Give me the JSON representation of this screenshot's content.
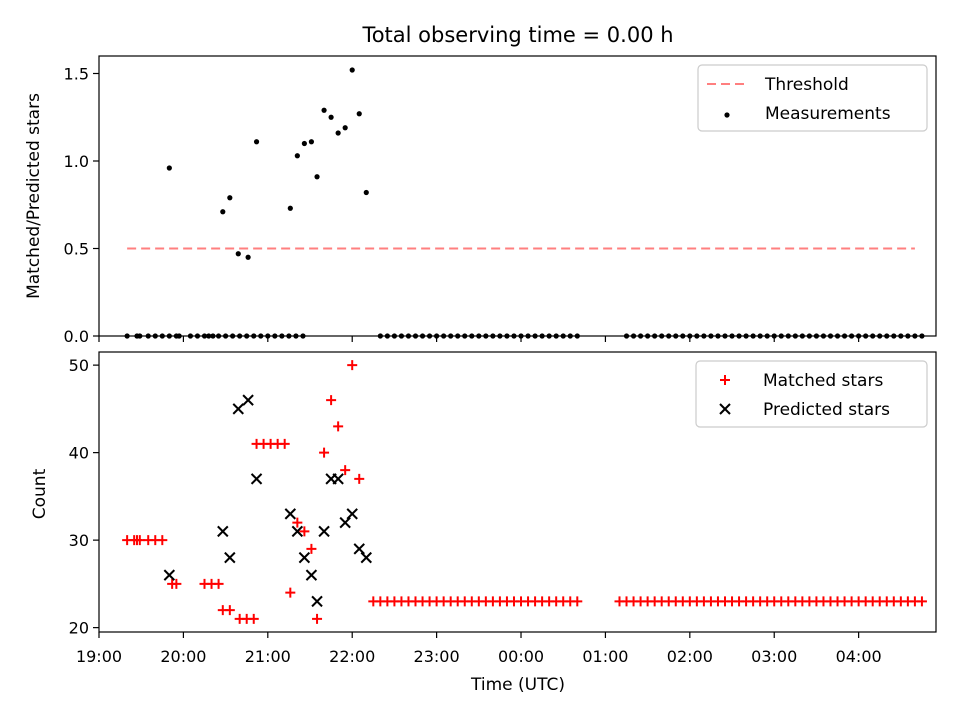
{
  "chart_data": [
    {
      "type": "scatter",
      "title": "Total observing time = 0.00 h",
      "xlabel": "",
      "ylabel": "Matched/Predicted stars",
      "xlim": [
        "19:00",
        "04:55"
      ],
      "ylim": [
        0,
        1.6
      ],
      "yticks": [
        0.0,
        0.5,
        1.0,
        1.5
      ],
      "ytick_labels": [
        "0.0",
        "0.5",
        "1.0",
        "1.5"
      ],
      "grid": false,
      "legend_position": "top-right",
      "legend": [
        "Threshold",
        "Measurements"
      ],
      "series": [
        {
          "name": "Threshold",
          "kind": "dashed-line",
          "color": "#ff7f7f",
          "x": [
            "19:20",
            "04:40"
          ],
          "y": [
            0.5,
            0.5
          ]
        },
        {
          "name": "Measurements",
          "kind": "scatter",
          "color": "#000000",
          "points": [
            [
              "19:20",
              0
            ],
            [
              "19:27",
              0
            ],
            [
              "19:29",
              0
            ],
            [
              "19:35",
              0
            ],
            [
              "19:40",
              0
            ],
            [
              "19:45",
              0
            ],
            [
              "19:50",
              0
            ],
            [
              "19:55",
              0
            ],
            [
              "19:57",
              0
            ],
            [
              "20:05",
              0
            ],
            [
              "20:10",
              0
            ],
            [
              "20:15",
              0
            ],
            [
              "20:18",
              0
            ],
            [
              "20:21",
              0
            ],
            [
              "20:25",
              0
            ],
            [
              "20:30",
              0
            ],
            [
              "20:35",
              0
            ],
            [
              "20:40",
              0
            ],
            [
              "20:45",
              0
            ],
            [
              "20:50",
              0
            ],
            [
              "20:55",
              0
            ],
            [
              "21:00",
              0
            ],
            [
              "21:05",
              0
            ],
            [
              "21:10",
              0
            ],
            [
              "21:15",
              0
            ],
            [
              "21:20",
              0
            ],
            [
              "21:25",
              0
            ],
            [
              "19:50",
              0.96
            ],
            [
              "20:28",
              0.71
            ],
            [
              "20:33",
              0.79
            ],
            [
              "20:39",
              0.47
            ],
            [
              "20:46",
              0.45
            ],
            [
              "20:52",
              1.11
            ],
            [
              "21:16",
              0.73
            ],
            [
              "21:21",
              1.03
            ],
            [
              "21:26",
              1.1
            ],
            [
              "21:31",
              1.11
            ],
            [
              "21:35",
              0.91
            ],
            [
              "21:40",
              1.29
            ],
            [
              "21:45",
              1.25
            ],
            [
              "21:50",
              1.16
            ],
            [
              "21:55",
              1.19
            ],
            [
              "22:00",
              1.52
            ],
            [
              "22:05",
              1.27
            ],
            [
              "22:10",
              0.82
            ],
            [
              "22:20",
              0
            ],
            [
              "22:25",
              0
            ],
            [
              "22:30",
              0
            ],
            [
              "22:35",
              0
            ],
            [
              "22:40",
              0
            ],
            [
              "22:45",
              0
            ],
            [
              "22:50",
              0
            ],
            [
              "22:55",
              0
            ],
            [
              "23:00",
              0
            ],
            [
              "23:05",
              0
            ],
            [
              "23:10",
              0
            ],
            [
              "23:15",
              0
            ],
            [
              "23:20",
              0
            ],
            [
              "23:25",
              0
            ],
            [
              "23:30",
              0
            ],
            [
              "23:35",
              0
            ],
            [
              "23:40",
              0
            ],
            [
              "23:45",
              0
            ],
            [
              "23:50",
              0
            ],
            [
              "23:55",
              0
            ],
            [
              "00:00",
              0
            ],
            [
              "00:05",
              0
            ],
            [
              "00:10",
              0
            ],
            [
              "00:15",
              0
            ],
            [
              "00:20",
              0
            ],
            [
              "00:25",
              0
            ],
            [
              "00:30",
              0
            ],
            [
              "00:35",
              0
            ],
            [
              "00:40",
              0
            ],
            [
              "01:15",
              0
            ],
            [
              "01:20",
              0
            ],
            [
              "01:25",
              0
            ],
            [
              "01:30",
              0
            ],
            [
              "01:35",
              0
            ],
            [
              "01:40",
              0
            ],
            [
              "01:45",
              0
            ],
            [
              "01:50",
              0
            ],
            [
              "01:55",
              0
            ],
            [
              "02:00",
              0
            ],
            [
              "02:05",
              0
            ],
            [
              "02:10",
              0
            ],
            [
              "02:15",
              0
            ],
            [
              "02:20",
              0
            ],
            [
              "02:25",
              0
            ],
            [
              "02:30",
              0
            ],
            [
              "02:35",
              0
            ],
            [
              "02:40",
              0
            ],
            [
              "02:45",
              0
            ],
            [
              "02:50",
              0
            ],
            [
              "02:55",
              0
            ],
            [
              "03:00",
              0
            ],
            [
              "03:05",
              0
            ],
            [
              "03:10",
              0
            ],
            [
              "03:15",
              0
            ],
            [
              "03:20",
              0
            ],
            [
              "03:25",
              0
            ],
            [
              "03:30",
              0
            ],
            [
              "03:35",
              0
            ],
            [
              "03:40",
              0
            ],
            [
              "03:45",
              0
            ],
            [
              "03:50",
              0
            ],
            [
              "03:55",
              0
            ],
            [
              "04:00",
              0
            ],
            [
              "04:05",
              0
            ],
            [
              "04:10",
              0
            ],
            [
              "04:15",
              0
            ],
            [
              "04:20",
              0
            ],
            [
              "04:25",
              0
            ],
            [
              "04:30",
              0
            ],
            [
              "04:35",
              0
            ],
            [
              "04:40",
              0
            ],
            [
              "04:45",
              0
            ]
          ]
        }
      ]
    },
    {
      "type": "scatter",
      "title": "",
      "xlabel": "Time (UTC)",
      "ylabel": "Count",
      "xlim": [
        "19:00",
        "04:55"
      ],
      "ylim": [
        19.5,
        51.5
      ],
      "yticks": [
        20,
        30,
        40,
        50
      ],
      "ytick_labels": [
        "20",
        "30",
        "40",
        "50"
      ],
      "xticks": [
        "19:00",
        "20:00",
        "21:00",
        "22:00",
        "23:00",
        "00:00",
        "01:00",
        "02:00",
        "03:00",
        "04:00"
      ],
      "grid": false,
      "legend_position": "top-right",
      "legend": [
        "Matched stars",
        "Predicted stars"
      ],
      "series": [
        {
          "name": "Matched stars",
          "marker": "plus",
          "color": "#ff0000",
          "points": [
            [
              "19:20",
              30
            ],
            [
              "19:25",
              30
            ],
            [
              "19:27",
              30
            ],
            [
              "19:29",
              30
            ],
            [
              "19:35",
              30
            ],
            [
              "19:40",
              30
            ],
            [
              "19:45",
              30
            ],
            [
              "19:52",
              25
            ],
            [
              "19:55",
              25
            ],
            [
              "20:15",
              25
            ],
            [
              "20:20",
              25
            ],
            [
              "20:25",
              25
            ],
            [
              "20:28",
              22
            ],
            [
              "20:33",
              22
            ],
            [
              "20:40",
              21
            ],
            [
              "20:45",
              21
            ],
            [
              "20:50",
              21
            ],
            [
              "20:52",
              41
            ],
            [
              "20:57",
              41
            ],
            [
              "21:02",
              41
            ],
            [
              "21:07",
              41
            ],
            [
              "21:12",
              41
            ],
            [
              "21:16",
              24
            ],
            [
              "21:21",
              32
            ],
            [
              "21:26",
              31
            ],
            [
              "21:31",
              29
            ],
            [
              "21:35",
              21
            ],
            [
              "21:40",
              40
            ],
            [
              "21:45",
              46
            ],
            [
              "21:50",
              43
            ],
            [
              "21:55",
              38
            ],
            [
              "22:00",
              50
            ],
            [
              "22:05",
              37
            ],
            [
              "22:15",
              23
            ],
            [
              "22:20",
              23
            ],
            [
              "22:25",
              23
            ],
            [
              "22:30",
              23
            ],
            [
              "22:35",
              23
            ],
            [
              "22:40",
              23
            ],
            [
              "22:45",
              23
            ],
            [
              "22:50",
              23
            ],
            [
              "22:55",
              23
            ],
            [
              "23:00",
              23
            ],
            [
              "23:05",
              23
            ],
            [
              "23:10",
              23
            ],
            [
              "23:15",
              23
            ],
            [
              "23:20",
              23
            ],
            [
              "23:25",
              23
            ],
            [
              "23:30",
              23
            ],
            [
              "23:35",
              23
            ],
            [
              "23:40",
              23
            ],
            [
              "23:45",
              23
            ],
            [
              "23:50",
              23
            ],
            [
              "23:55",
              23
            ],
            [
              "00:00",
              23
            ],
            [
              "00:05",
              23
            ],
            [
              "00:10",
              23
            ],
            [
              "00:15",
              23
            ],
            [
              "00:20",
              23
            ],
            [
              "00:25",
              23
            ],
            [
              "00:30",
              23
            ],
            [
              "00:35",
              23
            ],
            [
              "00:40",
              23
            ],
            [
              "01:10",
              23
            ],
            [
              "01:15",
              23
            ],
            [
              "01:20",
              23
            ],
            [
              "01:25",
              23
            ],
            [
              "01:30",
              23
            ],
            [
              "01:35",
              23
            ],
            [
              "01:40",
              23
            ],
            [
              "01:45",
              23
            ],
            [
              "01:50",
              23
            ],
            [
              "01:55",
              23
            ],
            [
              "02:00",
              23
            ],
            [
              "02:05",
              23
            ],
            [
              "02:10",
              23
            ],
            [
              "02:15",
              23
            ],
            [
              "02:20",
              23
            ],
            [
              "02:25",
              23
            ],
            [
              "02:30",
              23
            ],
            [
              "02:35",
              23
            ],
            [
              "02:40",
              23
            ],
            [
              "02:45",
              23
            ],
            [
              "02:50",
              23
            ],
            [
              "02:55",
              23
            ],
            [
              "03:00",
              23
            ],
            [
              "03:05",
              23
            ],
            [
              "03:10",
              23
            ],
            [
              "03:15",
              23
            ],
            [
              "03:20",
              23
            ],
            [
              "03:25",
              23
            ],
            [
              "03:30",
              23
            ],
            [
              "03:35",
              23
            ],
            [
              "03:40",
              23
            ],
            [
              "03:45",
              23
            ],
            [
              "03:50",
              23
            ],
            [
              "03:55",
              23
            ],
            [
              "04:00",
              23
            ],
            [
              "04:05",
              23
            ],
            [
              "04:10",
              23
            ],
            [
              "04:15",
              23
            ],
            [
              "04:20",
              23
            ],
            [
              "04:25",
              23
            ],
            [
              "04:30",
              23
            ],
            [
              "04:35",
              23
            ],
            [
              "04:40",
              23
            ],
            [
              "04:45",
              23
            ]
          ]
        },
        {
          "name": "Predicted stars",
          "marker": "x",
          "color": "#000000",
          "points": [
            [
              "19:50",
              26
            ],
            [
              "20:28",
              31
            ],
            [
              "20:33",
              28
            ],
            [
              "20:39",
              45
            ],
            [
              "20:46",
              46
            ],
            [
              "20:52",
              37
            ],
            [
              "21:16",
              33
            ],
            [
              "21:21",
              31
            ],
            [
              "21:26",
              28
            ],
            [
              "21:31",
              26
            ],
            [
              "21:35",
              23
            ],
            [
              "21:40",
              31
            ],
            [
              "21:45",
              37
            ],
            [
              "21:50",
              37
            ],
            [
              "21:55",
              32
            ],
            [
              "22:00",
              33
            ],
            [
              "22:05",
              29
            ],
            [
              "22:10",
              28
            ]
          ]
        }
      ]
    }
  ]
}
